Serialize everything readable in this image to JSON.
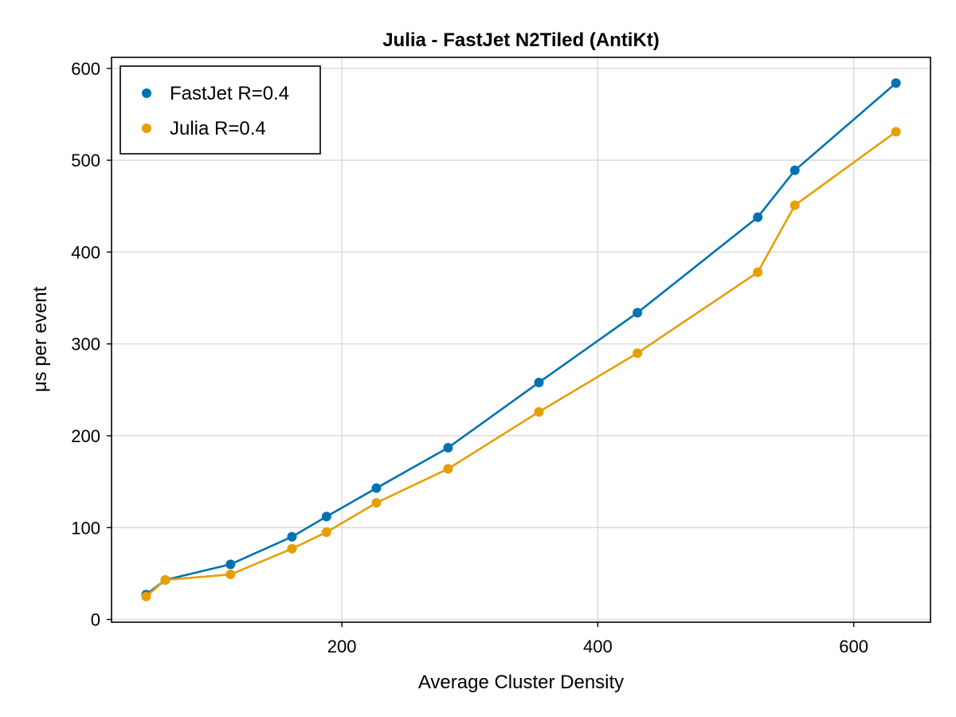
{
  "chart_data": {
    "type": "line",
    "title": "Julia - FastJet N2Tiled (AntiKt)",
    "xlabel": "Average Cluster Density",
    "ylabel": "μs per event",
    "xlim": [
      20,
      660
    ],
    "ylim": [
      -3,
      612
    ],
    "xticks": [
      200,
      400,
      600
    ],
    "yticks": [
      0,
      100,
      200,
      300,
      400,
      500,
      600
    ],
    "grid": true,
    "legend_position": "top-left",
    "series": [
      {
        "name": "FastJet R=0.4",
        "color": "#0072b2",
        "x": [
          47,
          62,
          113,
          161,
          188,
          227,
          283,
          354,
          431,
          525,
          554,
          633
        ],
        "y": [
          27,
          43,
          60,
          90,
          112,
          143,
          187,
          258,
          334,
          438,
          489,
          584
        ]
      },
      {
        "name": "Julia R=0.4",
        "color": "#e69f00",
        "x": [
          47,
          62,
          113,
          161,
          188,
          227,
          283,
          354,
          431,
          525,
          554,
          633
        ],
        "y": [
          25,
          43,
          49,
          77,
          95,
          127,
          164,
          226,
          290,
          378,
          451,
          531
        ]
      }
    ]
  }
}
